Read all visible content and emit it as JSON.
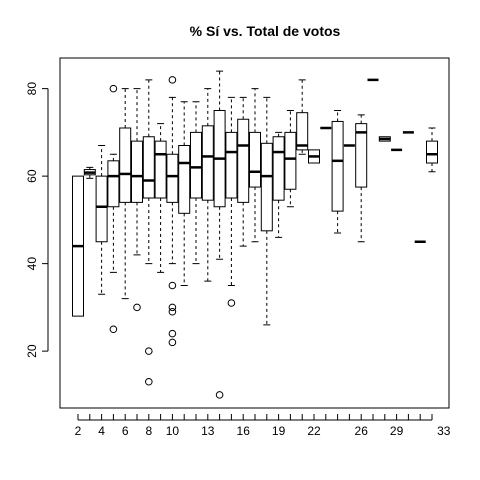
{
  "chart_data": {
    "type": "boxplot",
    "title": "% Sí vs. Total de votos",
    "xlabel": "",
    "ylabel": "",
    "ylim": [
      7,
      87
    ],
    "y_ticks": [
      20,
      40,
      60,
      80
    ],
    "x_ticks": [
      2,
      4,
      6,
      8,
      10,
      13,
      16,
      19,
      22,
      26,
      29,
      33
    ],
    "grid": false,
    "boxes": [
      {
        "x": 2,
        "q1": 28,
        "median": 44,
        "q3": 60,
        "whislo": 28,
        "whishi": 60,
        "outliers": []
      },
      {
        "x": 3,
        "q1": 60.3,
        "median": 60.8,
        "q3": 61.5,
        "whislo": 59.5,
        "whishi": 62,
        "outliers": []
      },
      {
        "x": 4,
        "q1": 45,
        "median": 53,
        "q3": 60,
        "whislo": 33,
        "whishi": 67,
        "outliers": []
      },
      {
        "x": 5,
        "q1": 53,
        "median": 60,
        "q3": 63.5,
        "whislo": 38,
        "whishi": 65,
        "outliers": [
          80,
          25
        ]
      },
      {
        "x": 6,
        "q1": 54,
        "median": 60.5,
        "q3": 71,
        "whislo": 32,
        "whishi": 80,
        "outliers": []
      },
      {
        "x": 7,
        "q1": 54,
        "median": 60,
        "q3": 68,
        "whislo": 42,
        "whishi": 80,
        "outliers": [
          30
        ]
      },
      {
        "x": 8,
        "q1": 55,
        "median": 59,
        "q3": 69,
        "whislo": 40,
        "whishi": 82,
        "outliers": [
          20,
          13
        ]
      },
      {
        "x": 9,
        "q1": 55,
        "median": 65,
        "q3": 68,
        "whislo": 38,
        "whishi": 72,
        "outliers": []
      },
      {
        "x": 10,
        "q1": 54,
        "median": 60,
        "q3": 65,
        "whislo": 40,
        "whishi": 78,
        "outliers": [
          82,
          35,
          30,
          29,
          24,
          22
        ]
      },
      {
        "x": 11,
        "q1": 51.5,
        "median": 63,
        "q3": 67,
        "whislo": 35,
        "whishi": 77,
        "outliers": []
      },
      {
        "x": 12,
        "q1": 55,
        "median": 62,
        "q3": 70,
        "whislo": 40,
        "whishi": 77,
        "outliers": []
      },
      {
        "x": 13,
        "q1": 54.5,
        "median": 64.5,
        "q3": 71.5,
        "whislo": 36,
        "whishi": 80,
        "outliers": []
      },
      {
        "x": 14,
        "q1": 53,
        "median": 64,
        "q3": 75,
        "whislo": 41,
        "whishi": 84,
        "outliers": [
          10
        ]
      },
      {
        "x": 15,
        "q1": 55,
        "median": 65.5,
        "q3": 70,
        "whislo": 35,
        "whishi": 78,
        "outliers": [
          31
        ]
      },
      {
        "x": 16,
        "q1": 54,
        "median": 67,
        "q3": 73,
        "whislo": 44,
        "whishi": 78,
        "outliers": []
      },
      {
        "x": 17,
        "q1": 57.5,
        "median": 61,
        "q3": 70,
        "whislo": 45,
        "whishi": 80,
        "outliers": []
      },
      {
        "x": 18,
        "q1": 47.5,
        "median": 60,
        "q3": 67.5,
        "whislo": 26,
        "whishi": 78,
        "outliers": []
      },
      {
        "x": 19,
        "q1": 54.5,
        "median": 65.5,
        "q3": 69,
        "whislo": 46,
        "whishi": 70,
        "outliers": []
      },
      {
        "x": 20,
        "q1": 57,
        "median": 64,
        "q3": 70,
        "whislo": 53,
        "whishi": 75,
        "outliers": []
      },
      {
        "x": 21,
        "q1": 66,
        "median": 67,
        "q3": 74.5,
        "whislo": 65,
        "whishi": 82,
        "outliers": []
      },
      {
        "x": 22,
        "q1": 63,
        "median": 64.5,
        "q3": 66,
        "whislo": 63,
        "whishi": 66,
        "outliers": []
      },
      {
        "x": 23,
        "q1": 71,
        "median": 71,
        "q3": 71,
        "whislo": 71,
        "whishi": 71,
        "outliers": []
      },
      {
        "x": 24,
        "q1": 52,
        "median": 63.5,
        "q3": 72.5,
        "whislo": 47,
        "whishi": 75,
        "outliers": []
      },
      {
        "x": 25,
        "q1": 67,
        "median": 67,
        "q3": 67,
        "whislo": 67,
        "whishi": 67,
        "outliers": []
      },
      {
        "x": 26,
        "q1": 57.5,
        "median": 70,
        "q3": 72,
        "whislo": 45,
        "whishi": 74,
        "outliers": []
      },
      {
        "x": 27,
        "q1": 82,
        "median": 82,
        "q3": 82,
        "whislo": 82,
        "whishi": 82,
        "outliers": []
      },
      {
        "x": 28,
        "q1": 68,
        "median": 68.5,
        "q3": 69,
        "whislo": 68,
        "whishi": 69,
        "outliers": []
      },
      {
        "x": 29,
        "q1": 66,
        "median": 66,
        "q3": 66,
        "whislo": 66,
        "whishi": 66,
        "outliers": []
      },
      {
        "x": 30,
        "q1": 70,
        "median": 70,
        "q3": 70,
        "whislo": 70,
        "whishi": 70,
        "outliers": []
      },
      {
        "x": 31,
        "q1": 45,
        "median": 45,
        "q3": 45,
        "whislo": 45,
        "whishi": 45,
        "outliers": []
      },
      {
        "x": 32,
        "q1": 63,
        "median": 65,
        "q3": 68,
        "whislo": 61,
        "whishi": 71,
        "outliers": []
      }
    ]
  }
}
